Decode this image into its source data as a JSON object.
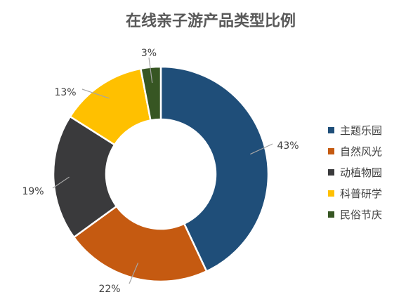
{
  "chart_data": {
    "type": "pie",
    "donut": true,
    "title": "在线亲子游产品类型比例",
    "legend_position": "right",
    "slices": [
      {
        "label": "主题乐园",
        "value": 43,
        "display": "43%",
        "color": "#1f4e79"
      },
      {
        "label": "自然风光",
        "value": 22,
        "display": "22%",
        "color": "#c55a11"
      },
      {
        "label": "动植物园",
        "value": 19,
        "display": "19%",
        "color": "#3a3a3c"
      },
      {
        "label": "科普研学",
        "value": 13,
        "display": "13%",
        "color": "#ffc000"
      },
      {
        "label": "民俗节庆",
        "value": 3,
        "display": "3%",
        "color": "#375623"
      }
    ]
  }
}
